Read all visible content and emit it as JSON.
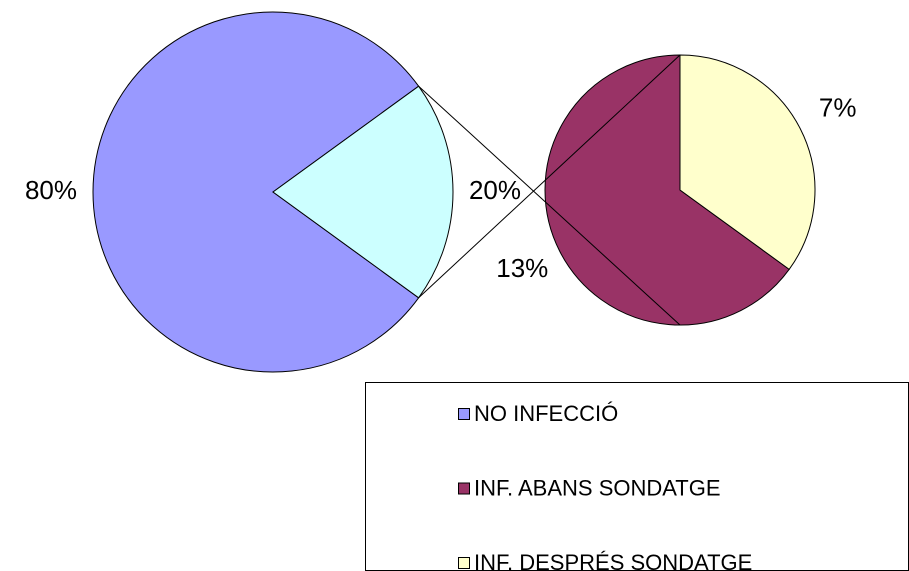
{
  "chart_data": {
    "type": "pie",
    "categories": [
      "NO INFECCIÓ",
      null
    ],
    "values": [
      80,
      20
    ],
    "value_labels": [
      "80%",
      "20%"
    ],
    "colors": [
      "#9999ff",
      "#ccffff"
    ],
    "secondary": {
      "categories": [
        "INF. ABANS SONDATGE",
        "INF. DESPRÉS SONDATGE"
      ],
      "values": [
        13,
        7
      ],
      "value_labels": [
        "13%",
        "7%"
      ],
      "colors": [
        "#993366",
        "#ffffcc"
      ]
    },
    "legend": "bottom-right"
  }
}
